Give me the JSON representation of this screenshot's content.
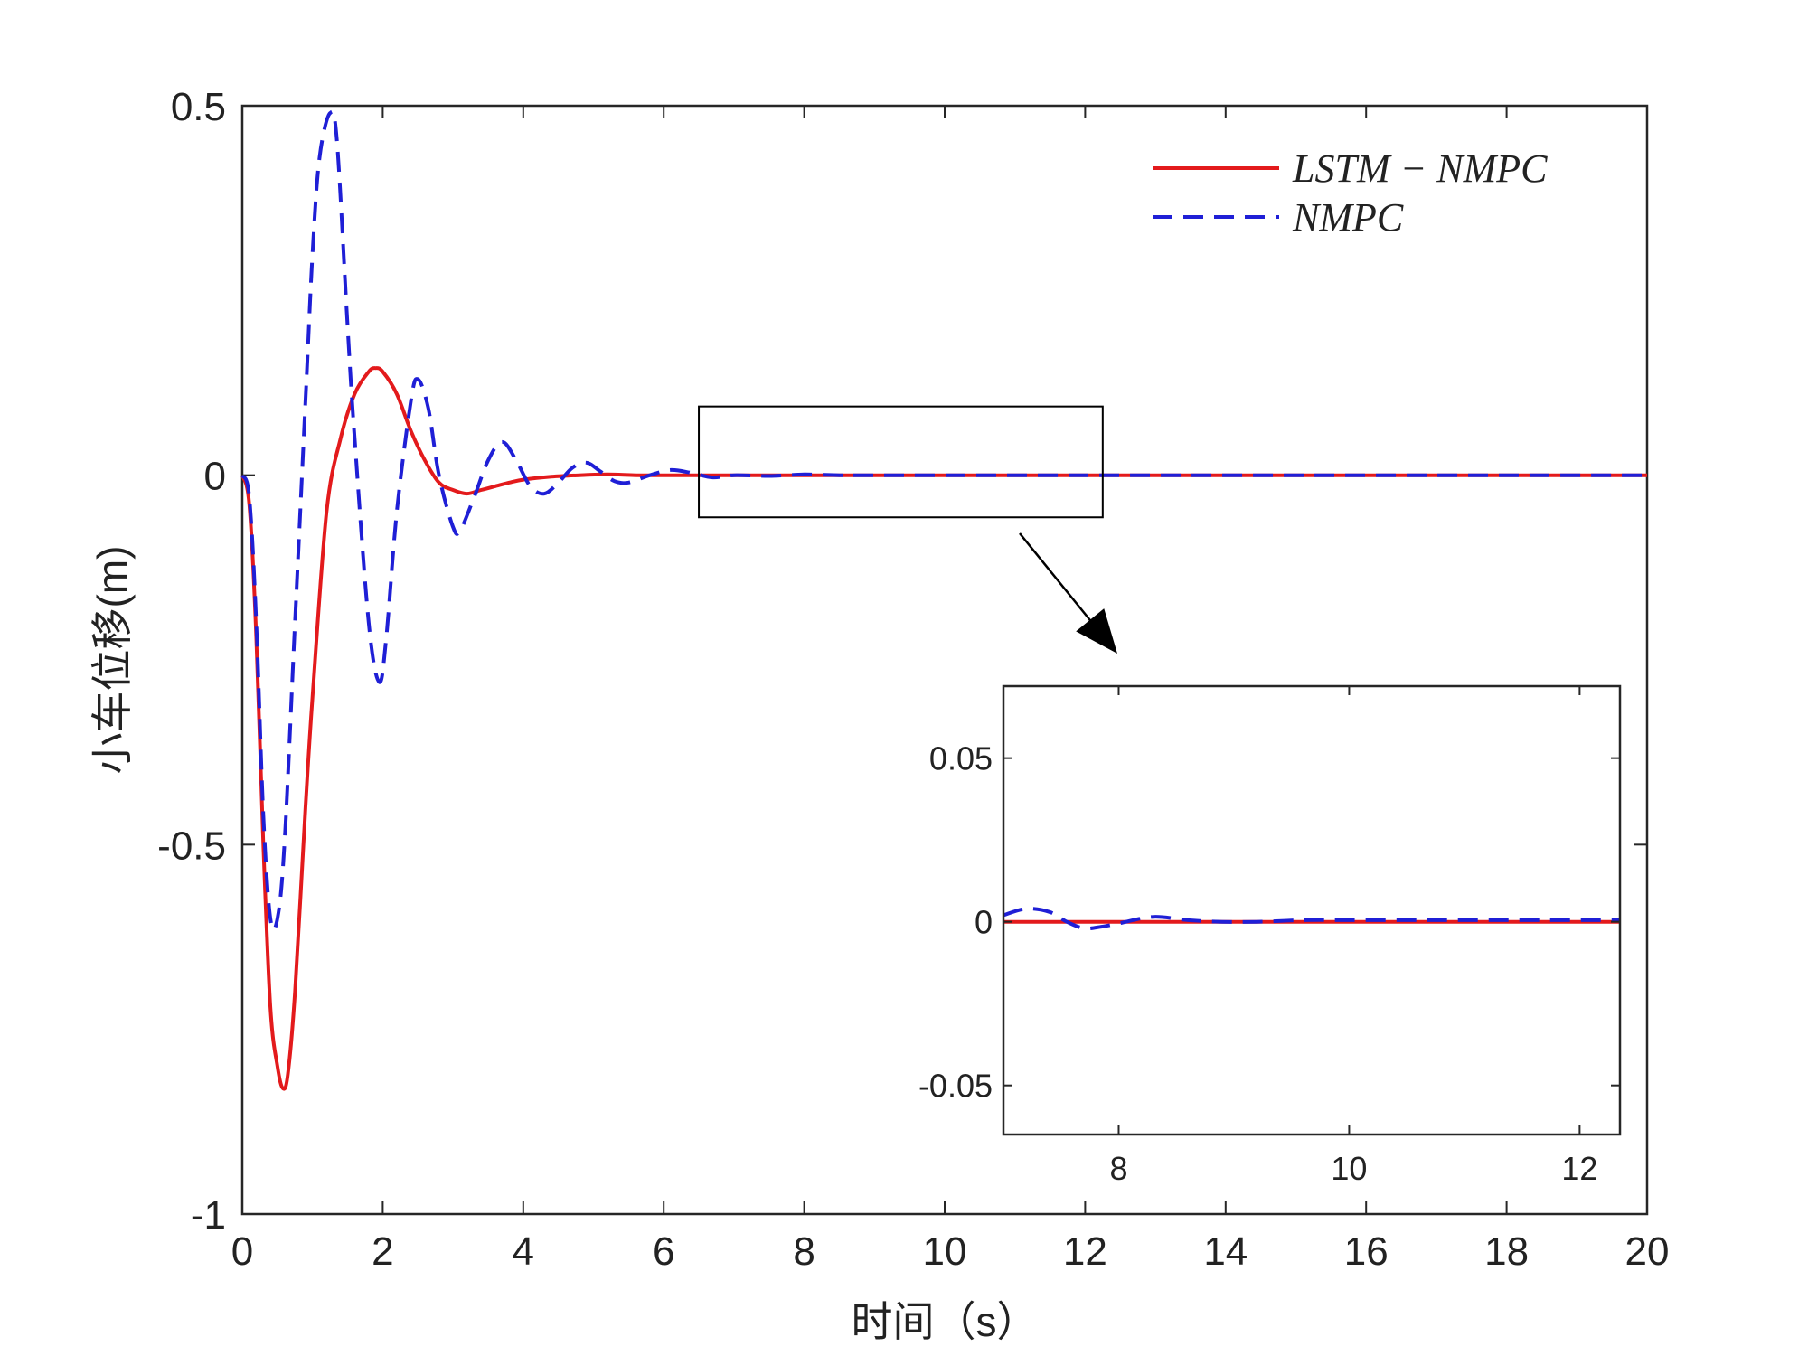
{
  "colors": {
    "lstm_nmpc": "#e31a1c",
    "nmpc": "#1f1fd6",
    "axes": "#262626",
    "zoom_box": "#000000"
  },
  "chart_data": {
    "type": "line",
    "xlabel": "时间（s）",
    "ylabel": "小车位移(m)",
    "xlim": [
      0,
      20
    ],
    "ylim": [
      -1,
      0.5
    ],
    "x_ticks": [
      0,
      2,
      4,
      6,
      8,
      10,
      12,
      14,
      16,
      18,
      20
    ],
    "y_ticks": [
      -1,
      -0.5,
      0,
      0.5
    ],
    "x_tick_labels": [
      "0",
      "2",
      "4",
      "6",
      "8",
      "10",
      "12",
      "14",
      "16",
      "18",
      "20"
    ],
    "y_tick_labels": [
      "-1",
      "-0.5",
      "0",
      "0.5"
    ],
    "grid": false,
    "legend_position": "top-right",
    "series": [
      {
        "name": "LSTM − NMPC",
        "legend_label": "LSTM − NMPC",
        "style": "solid",
        "x": [
          0,
          0.1,
          0.2,
          0.3,
          0.4,
          0.5,
          0.58,
          0.65,
          0.75,
          0.9,
          1.0,
          1.2,
          1.4,
          1.6,
          1.8,
          1.9,
          2.0,
          2.2,
          2.4,
          2.6,
          2.8,
          3.0,
          3.2,
          3.4,
          3.6,
          3.8,
          4.0,
          4.4,
          4.8,
          5.2,
          5.6,
          6.0,
          7.0,
          8.0,
          10.0,
          14.0,
          20.0
        ],
        "y": [
          0,
          -0.04,
          -0.22,
          -0.5,
          -0.72,
          -0.8,
          -0.83,
          -0.81,
          -0.7,
          -0.45,
          -0.3,
          -0.05,
          0.05,
          0.11,
          0.14,
          0.145,
          0.14,
          0.11,
          0.06,
          0.02,
          -0.01,
          -0.02,
          -0.025,
          -0.02,
          -0.015,
          -0.01,
          -0.006,
          -0.002,
          0.0,
          0.001,
          0.0,
          0.0,
          0.0,
          0.0,
          0.0,
          0.0,
          0.0
        ]
      },
      {
        "name": "NMPC",
        "legend_label": "NMPC",
        "style": "dashed",
        "x": [
          0,
          0.1,
          0.2,
          0.3,
          0.4,
          0.5,
          0.6,
          0.75,
          0.9,
          1.0,
          1.1,
          1.25,
          1.35,
          1.5,
          1.6,
          1.8,
          1.95,
          2.05,
          2.2,
          2.4,
          2.5,
          2.65,
          2.8,
          3.0,
          3.1,
          3.3,
          3.5,
          3.7,
          3.9,
          4.1,
          4.3,
          4.5,
          4.7,
          4.9,
          5.1,
          5.3,
          5.5,
          5.8,
          6.1,
          6.4,
          6.7,
          7.0,
          7.5,
          8.0,
          8.5,
          9.0,
          10.0,
          12.0,
          14.0,
          16.0,
          18.0,
          20.0
        ],
        "y": [
          0,
          -0.03,
          -0.2,
          -0.46,
          -0.6,
          -0.6,
          -0.5,
          -0.2,
          0.1,
          0.3,
          0.43,
          0.49,
          0.45,
          0.2,
          0.05,
          -0.2,
          -0.28,
          -0.22,
          -0.05,
          0.1,
          0.13,
          0.09,
          0.0,
          -0.07,
          -0.075,
          -0.03,
          0.02,
          0.045,
          0.02,
          -0.015,
          -0.025,
          -0.01,
          0.01,
          0.017,
          0.005,
          -0.008,
          -0.01,
          0.0,
          0.007,
          0.003,
          -0.003,
          0.0,
          -0.001,
          0.001,
          0.0,
          0.0,
          0.0,
          0.0,
          0.0,
          0.0,
          0.0,
          0.0
        ]
      }
    ],
    "inset": {
      "xlim": [
        7,
        12.35
      ],
      "ylim": [
        -0.065,
        0.072
      ],
      "x_ticks": [
        8,
        10,
        12
      ],
      "y_ticks": [
        -0.05,
        0,
        0.05
      ],
      "x_tick_labels": [
        "8",
        "10",
        "12"
      ],
      "y_tick_labels": [
        "-0.05",
        "0",
        "0.05"
      ],
      "source_region": {
        "x": [
          6.5,
          12.25
        ],
        "y": [
          -0.057,
          0.093
        ]
      },
      "series": [
        {
          "ref": "LSTM − NMPC",
          "style": "solid",
          "x": [
            7.0,
            12.35
          ],
          "y": [
            0.0,
            0.0
          ]
        },
        {
          "ref": "NMPC",
          "style": "dashed",
          "x": [
            7.0,
            7.2,
            7.4,
            7.55,
            7.7,
            7.85,
            8.0,
            8.3,
            8.6,
            8.9,
            9.2,
            9.6,
            10.0,
            10.5,
            11.0,
            11.5,
            12.0,
            12.35
          ],
          "y": [
            0.002,
            0.004,
            0.003,
            0.0,
            -0.002,
            -0.0015,
            -0.0005,
            0.0015,
            0.0005,
            0.0,
            0.0,
            0.0005,
            0.0005,
            0.0005,
            0.0005,
            0.0005,
            0.0005,
            0.0005
          ]
        }
      ]
    }
  }
}
